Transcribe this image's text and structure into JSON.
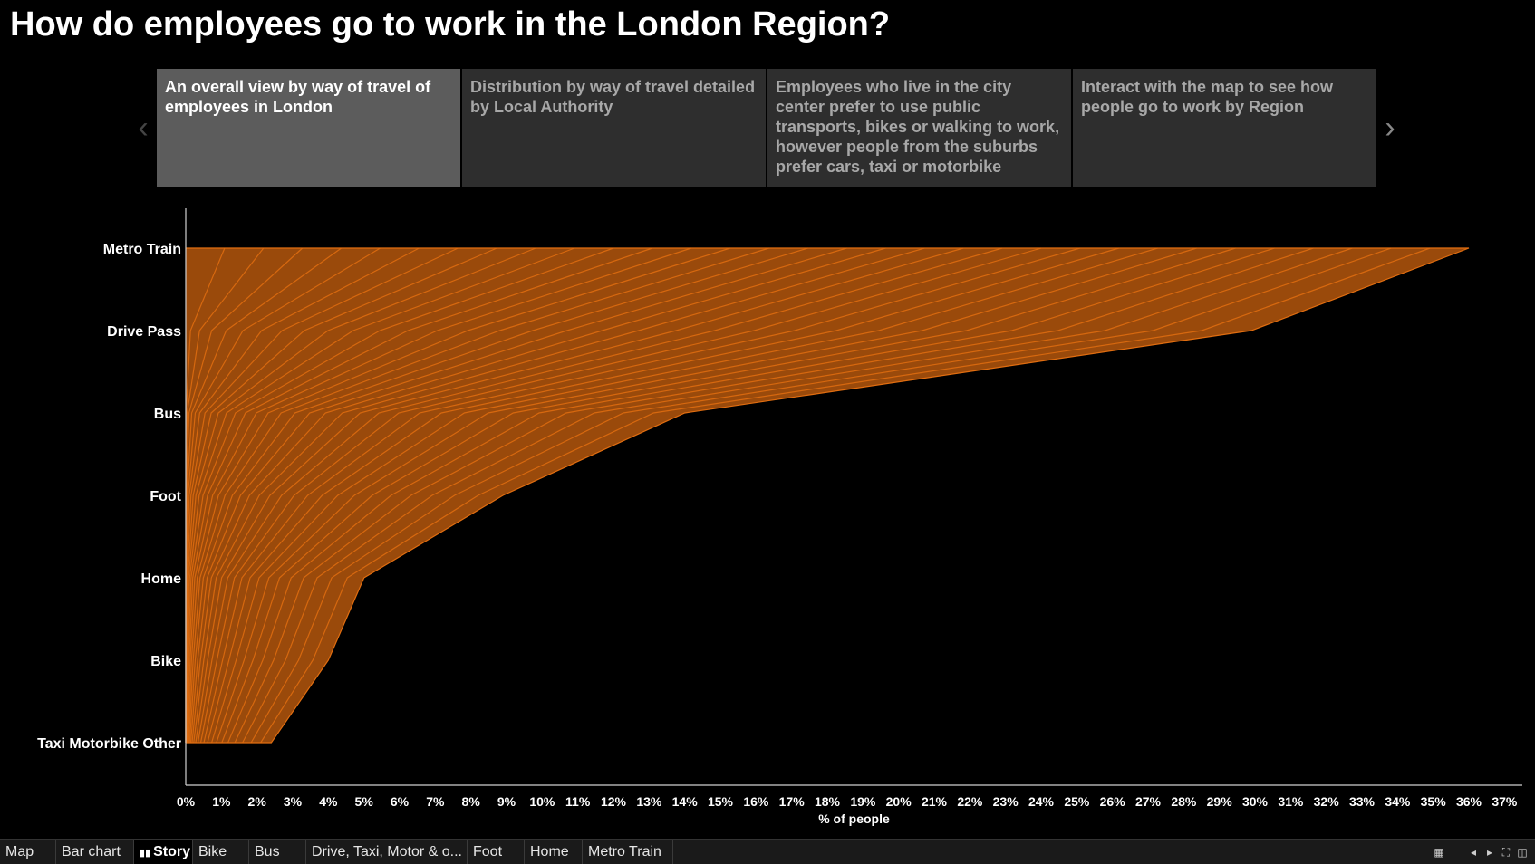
{
  "title": "How do employees go to work in the London Region?",
  "story": {
    "points": [
      {
        "label": "An overall view by way of travel of employees in London"
      },
      {
        "label": "Distribution by way of travel detailed by Local Authority"
      },
      {
        "label": "Employees who live in the city center prefer to use public transports, bikes or walking to work, however people from the suburbs prefer cars, taxi or motorbike"
      },
      {
        "label": "Interact with the map to see how people go to work by Region"
      }
    ],
    "prev_icon": "chevron-left-icon",
    "next_icon": "chevron-right-icon"
  },
  "tabs": [
    {
      "label": "Map"
    },
    {
      "label": "Bar chart"
    },
    {
      "label": "Story",
      "icon": "story-icon"
    },
    {
      "label": "Bike"
    },
    {
      "label": "Bus"
    },
    {
      "label": "Drive, Taxi, Motor & o..."
    },
    {
      "label": "Foot"
    },
    {
      "label": "Home"
    },
    {
      "label": "Metro Train"
    }
  ],
  "toolbar_icons": [
    "grid-icon",
    "arrow-left-icon",
    "arrow-right-icon",
    "fullscreen-icon",
    "presentation-icon"
  ],
  "chart_data": {
    "type": "area",
    "orientation": "horizontal",
    "categories": [
      "Metro Train",
      "Drive Pass",
      "Bus",
      "Foot",
      "Home",
      "Bike",
      "Taxi Motorbike Other"
    ],
    "xlabel": "% of people",
    "xticks": [
      "0%",
      "1%",
      "2%",
      "3%",
      "4%",
      "5%",
      "6%",
      "7%",
      "8%",
      "9%",
      "10%",
      "11%",
      "12%",
      "13%",
      "14%",
      "15%",
      "16%",
      "17%",
      "18%",
      "19%",
      "20%",
      "21%",
      "22%",
      "23%",
      "24%",
      "25%",
      "26%",
      "27%",
      "28%",
      "29%",
      "30%",
      "31%",
      "32%",
      "33%",
      "34%",
      "35%",
      "36%",
      "37%"
    ],
    "xlim": [
      0,
      37.5
    ],
    "total_envelope": [
      36.0,
      29.9,
      14.0,
      8.9,
      5.0,
      4.0,
      2.4
    ],
    "layer_count": 33,
    "fill_color": "#9a4a0b",
    "line_color": "#e06d10",
    "grid": false
  }
}
